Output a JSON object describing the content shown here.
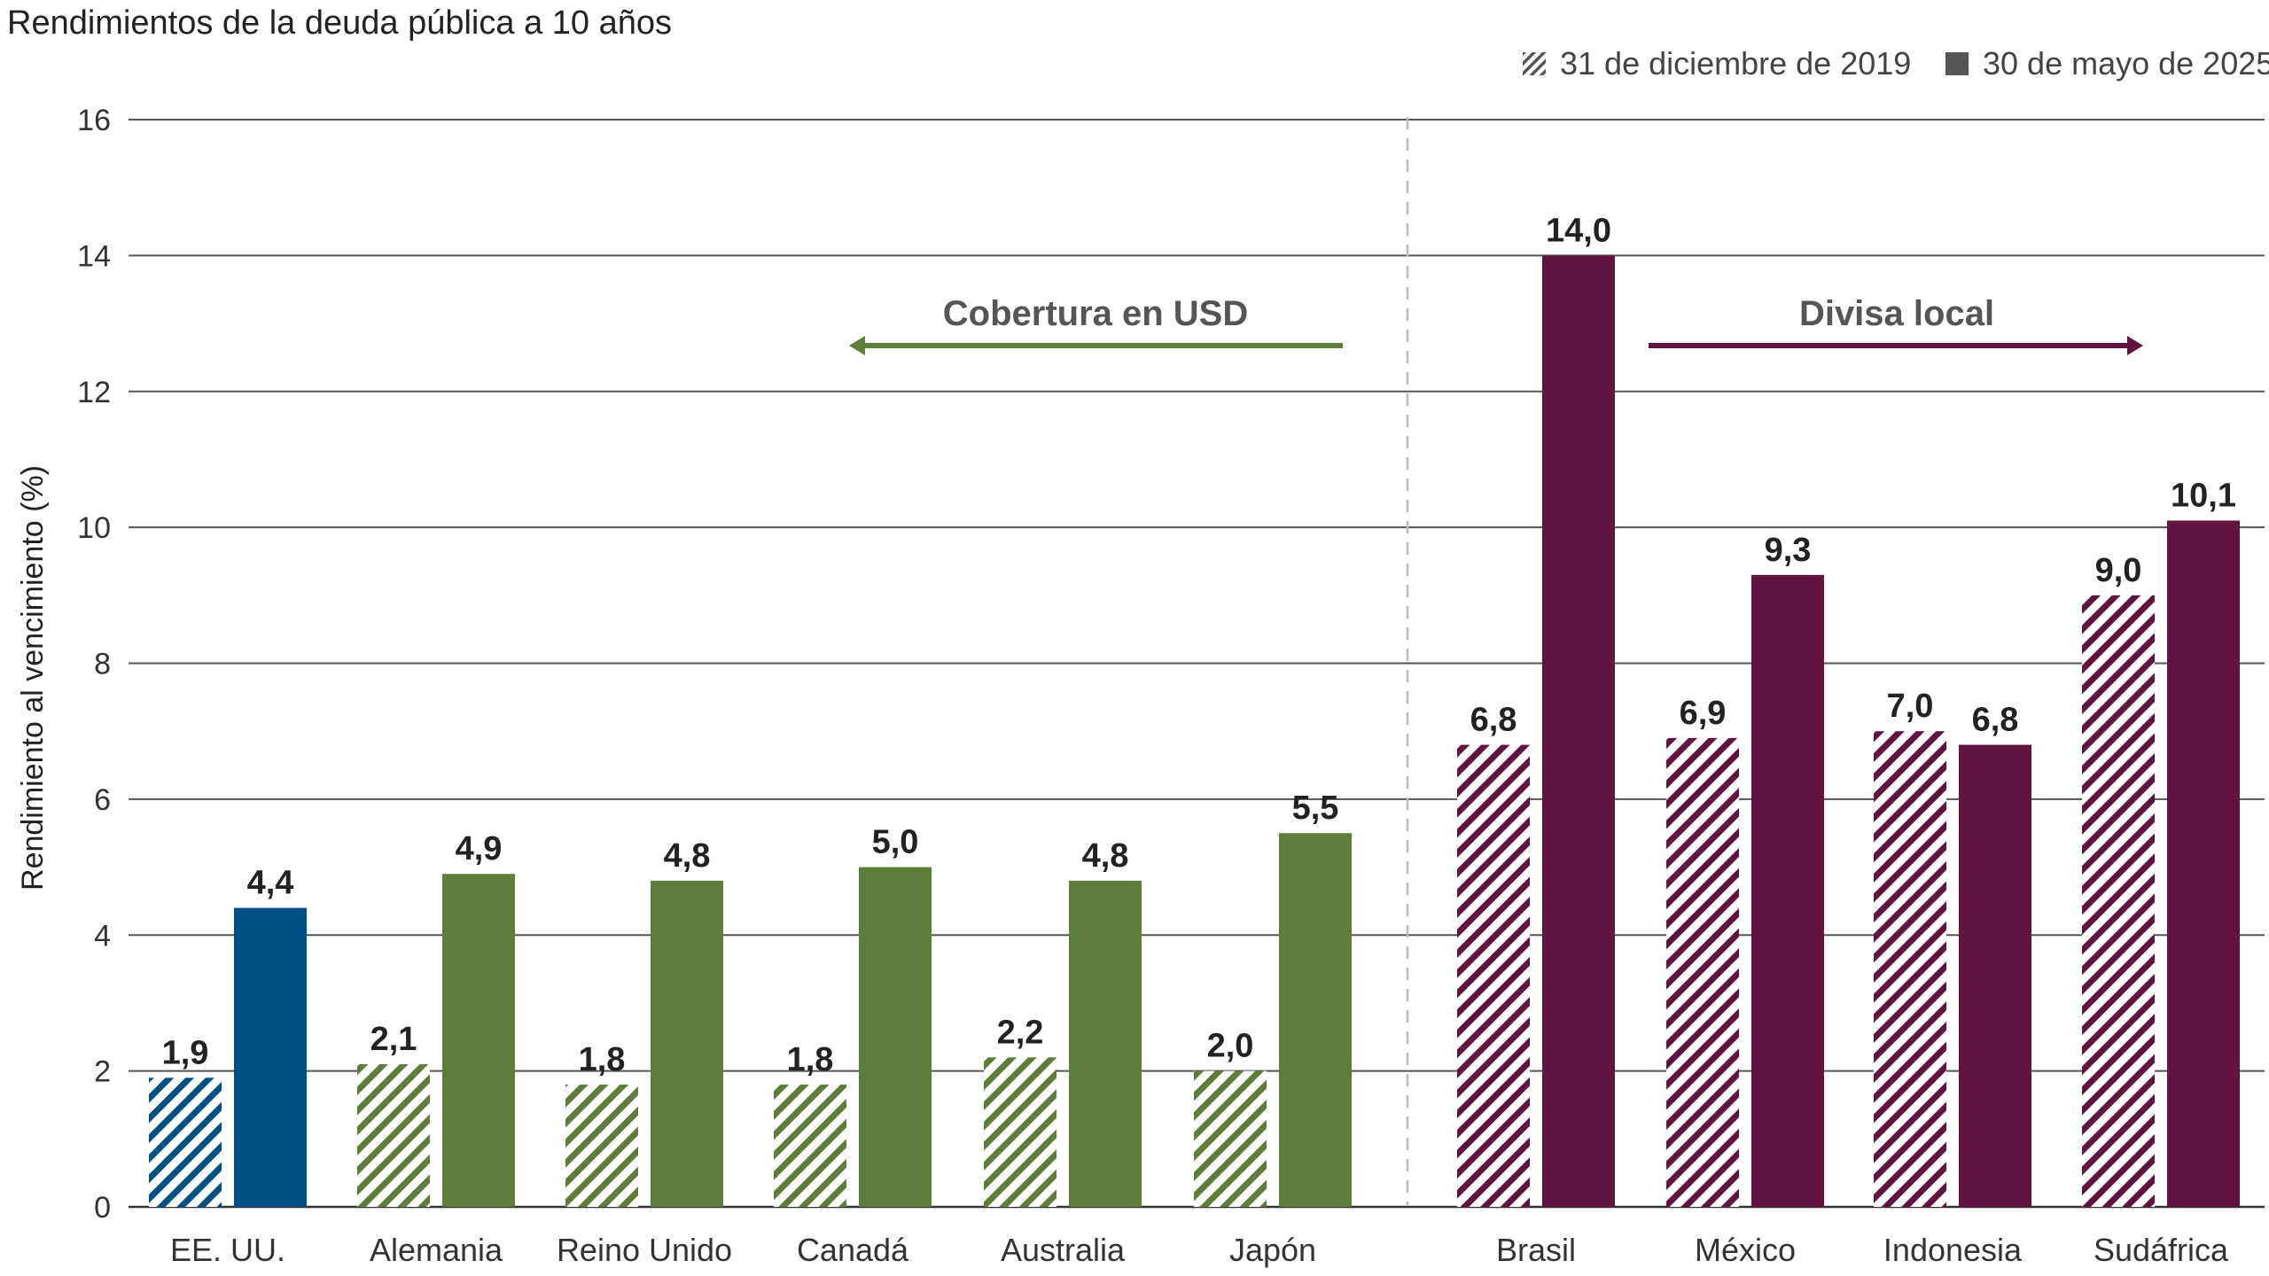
{
  "chart_data": {
    "type": "bar",
    "title": "Rendimientos de la deuda pública a 10 años",
    "ylabel": "Rendimiento al vencimiento (%)",
    "ylim": [
      0,
      16
    ],
    "yticks": [
      0,
      2,
      4,
      6,
      8,
      10,
      12,
      14,
      16
    ],
    "grid": true,
    "legend_position": "top-right",
    "categories": [
      "EE. UU.",
      "Alemania",
      "Reino Unido",
      "Canadá",
      "Australia",
      "Japón",
      "Brasil",
      "México",
      "Indonesia",
      "Sudáfrica"
    ],
    "category_groups": [
      "us",
      "hedged",
      "hedged",
      "hedged",
      "hedged",
      "hedged",
      "local",
      "local",
      "local",
      "local"
    ],
    "group_colors": {
      "us": "#005183",
      "hedged": "#5f7d3a",
      "local": "#621441"
    },
    "series": [
      {
        "name": "31 de diciembre de 2019",
        "pattern": "hatched",
        "values": [
          1.9,
          2.1,
          1.8,
          1.8,
          2.2,
          2.0,
          6.8,
          6.9,
          7.0,
          9.0
        ],
        "labels": [
          "1,9",
          "2,1",
          "1,8",
          "1,8",
          "2,2",
          "2,0",
          "6,8",
          "6,9",
          "7,0",
          "9,0"
        ]
      },
      {
        "name": "30 de mayo de 2025",
        "pattern": "solid",
        "values": [
          4.4,
          4.9,
          4.8,
          5.0,
          4.8,
          5.5,
          14.0,
          9.3,
          6.8,
          10.1
        ],
        "labels": [
          "4,4",
          "4,9",
          "4,8",
          "5,0",
          "4,8",
          "5,5",
          "14,0",
          "9,3",
          "6,8",
          "10,1"
        ]
      }
    ],
    "annotations": [
      {
        "text": "Cobertura en USD",
        "arrow": "left",
        "color": "#5f7d3a"
      },
      {
        "text": "Divisa local",
        "arrow": "right",
        "color": "#621441"
      }
    ],
    "legend_swatch_color": "#555555"
  }
}
